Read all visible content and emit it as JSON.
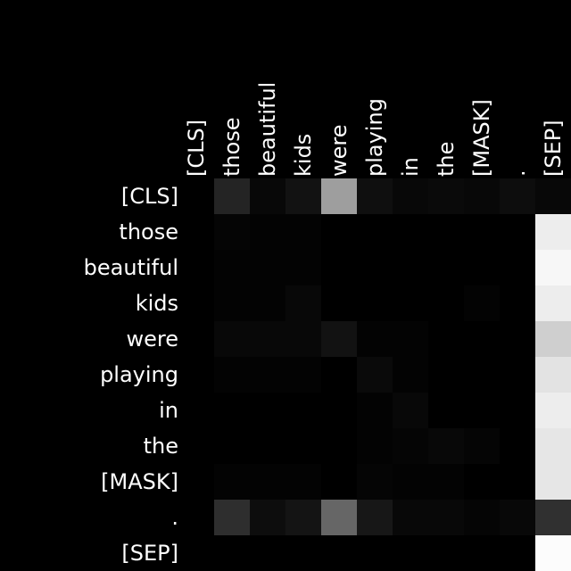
{
  "chart_data": {
    "type": "heatmap",
    "title": "",
    "xlabel": "",
    "ylabel": "",
    "x_tokens": [
      "[CLS]",
      "those",
      "beautiful",
      "kids",
      "were",
      "playing",
      "in",
      "the",
      "[MASK]",
      ".",
      "[SEP]"
    ],
    "y_tokens": [
      "[CLS]",
      "those",
      "beautiful",
      "kids",
      "were",
      "playing",
      "in",
      "the",
      "[MASK]",
      ".",
      "[SEP]"
    ],
    "value_range": [
      0,
      1
    ],
    "colormap": "grayscale",
    "matrix": [
      [
        0.0,
        0.14,
        0.03,
        0.07,
        0.62,
        0.06,
        0.03,
        0.04,
        0.03,
        0.05,
        0.03
      ],
      [
        0.0,
        0.02,
        0.01,
        0.01,
        0.0,
        0.0,
        0.0,
        0.0,
        0.0,
        0.0,
        0.93
      ],
      [
        0.0,
        0.01,
        0.01,
        0.01,
        0.0,
        0.0,
        0.0,
        0.0,
        0.0,
        0.0,
        0.97
      ],
      [
        0.0,
        0.01,
        0.01,
        0.03,
        0.0,
        0.0,
        0.0,
        0.0,
        0.01,
        0.0,
        0.93
      ],
      [
        0.0,
        0.03,
        0.03,
        0.03,
        0.07,
        0.01,
        0.01,
        0.0,
        0.0,
        0.0,
        0.81
      ],
      [
        0.0,
        0.01,
        0.01,
        0.01,
        0.0,
        0.04,
        0.01,
        0.0,
        0.0,
        0.0,
        0.89
      ],
      [
        0.0,
        0.0,
        0.0,
        0.0,
        0.0,
        0.01,
        0.03,
        0.0,
        0.0,
        0.0,
        0.93
      ],
      [
        0.0,
        0.0,
        0.0,
        0.0,
        0.0,
        0.01,
        0.02,
        0.03,
        0.02,
        0.0,
        0.9
      ],
      [
        0.0,
        0.01,
        0.01,
        0.01,
        0.0,
        0.02,
        0.01,
        0.01,
        0.0,
        0.0,
        0.9
      ],
      [
        0.0,
        0.18,
        0.05,
        0.08,
        0.4,
        0.09,
        0.03,
        0.03,
        0.02,
        0.03,
        0.19
      ],
      [
        0.0,
        0.0,
        0.0,
        0.0,
        0.0,
        0.0,
        0.0,
        0.0,
        0.0,
        0.0,
        0.99
      ]
    ]
  }
}
